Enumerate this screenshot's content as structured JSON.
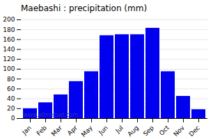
{
  "chart_data": {
    "type": "bar",
    "title": "Maebashi : precipitation (mm)",
    "categories": [
      "Jan",
      "Feb",
      "Mar",
      "Apr",
      "May",
      "Jun",
      "Jul",
      "Aug",
      "Sep",
      "Oct",
      "Nov",
      "Dec"
    ],
    "values": [
      20,
      32,
      48,
      75,
      95,
      168,
      170,
      170,
      183,
      95,
      45,
      18
    ],
    "color": "#0000EE",
    "ylim": [
      0,
      200
    ],
    "yticks": [
      0,
      20,
      40,
      60,
      80,
      100,
      120,
      140,
      160,
      180,
      200
    ],
    "grid": true,
    "annotations": [
      "www.allmetsat.com"
    ]
  }
}
